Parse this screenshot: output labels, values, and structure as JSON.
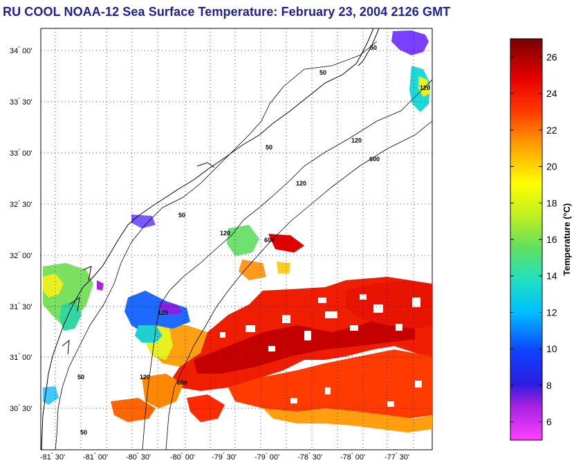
{
  "title": "RU COOL  NOAA-12  Sea Surface Temperature:  February 23, 2004 2126 GMT",
  "latitude_ticks": [
    {
      "deg": "34",
      "min": "00'"
    },
    {
      "deg": "33",
      "min": "30'"
    },
    {
      "deg": "33",
      "min": "00'"
    },
    {
      "deg": "32",
      "min": "30'"
    },
    {
      "deg": "32",
      "min": "00'"
    },
    {
      "deg": "31",
      "min": "30'"
    },
    {
      "deg": "31",
      "min": "00'"
    },
    {
      "deg": "30",
      "min": "30'"
    }
  ],
  "longitude_ticks": [
    {
      "deg": "-81",
      "min": "30'"
    },
    {
      "deg": "-81",
      "min": "00'"
    },
    {
      "deg": "-80",
      "min": "30'"
    },
    {
      "deg": "-80",
      "min": "00'"
    },
    {
      "deg": "-79",
      "min": "30'"
    },
    {
      "deg": "-79",
      "min": "00'"
    },
    {
      "deg": "-78",
      "min": "30'"
    },
    {
      "deg": "-78",
      "min": "00'"
    },
    {
      "deg": "-77",
      "min": "30'"
    }
  ],
  "isobath_labels": [
    "50",
    "50",
    "50",
    "50",
    "50",
    "50",
    "120",
    "120",
    "120",
    "120",
    "120",
    "120",
    "600",
    "600",
    "600"
  ],
  "colorbar": {
    "label": "Temperature (°C)",
    "ticks": [
      "6",
      "8",
      "10",
      "12",
      "14",
      "16",
      "18",
      "20",
      "22",
      "24",
      "26"
    ],
    "min": 5,
    "max": 27
  },
  "colors": {
    "title": "#1e1e9a",
    "land": "#ffffff",
    "grid": "#000000"
  }
}
